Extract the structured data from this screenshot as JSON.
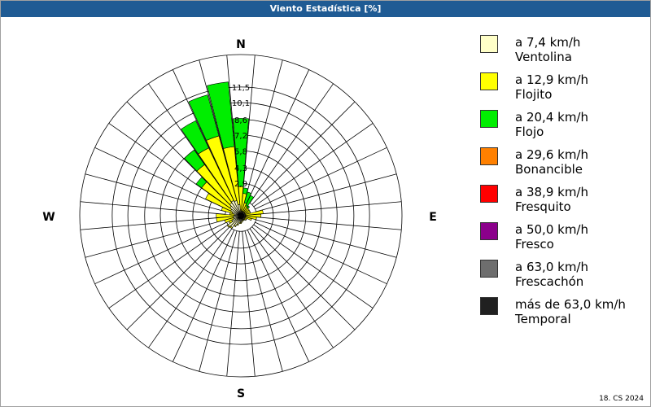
{
  "window": {
    "title": "Viento Estadística [%]"
  },
  "footer": {
    "text": "18. CS 2024"
  },
  "compass": {
    "north": "N",
    "east": "E",
    "south": "S",
    "west": "W"
  },
  "legend": [
    {
      "speed": "a 7,4 km/h",
      "name": "Ventolina",
      "color": "#ffffc8"
    },
    {
      "speed": "a 12,9 km/h",
      "name": "Flojito",
      "color": "#ffff00"
    },
    {
      "speed": "a 20,4 km/h",
      "name": "Flojo",
      "color": "#00ee00"
    },
    {
      "speed": "a 29,6 km/h",
      "name": "Bonancible",
      "color": "#ff8000"
    },
    {
      "speed": "a 38,9 km/h",
      "name": "Fresquito",
      "color": "#ff0000"
    },
    {
      "speed": "a 50,0 km/h",
      "name": "Fresco",
      "color": "#8b008b"
    },
    {
      "speed": "a 63,0 km/h",
      "name": "Frescachón",
      "color": "#6e6e6e"
    },
    {
      "speed": "más de 63,0 km/h",
      "name": "Temporal",
      "color": "#202020"
    }
  ],
  "chart_data": {
    "type": "polar-bar",
    "title": "Viento Estadística [%]",
    "unit": "%",
    "rmax": 14.4,
    "radial_ticks": [
      1.4,
      2.9,
      4.3,
      5.8,
      7.2,
      8.6,
      10.1,
      11.5
    ],
    "radial_tick_labels": [
      "",
      "2,9",
      "4,3",
      "5,8",
      "7,2",
      "8,6",
      "10,1",
      "11,5"
    ],
    "sectors": 36,
    "sector_width_deg": 10,
    "directions_deg": [
      0,
      10,
      20,
      30,
      40,
      50,
      60,
      70,
      80,
      90,
      100,
      110,
      120,
      130,
      140,
      150,
      160,
      170,
      180,
      190,
      200,
      210,
      220,
      230,
      240,
      250,
      260,
      270,
      280,
      290,
      300,
      310,
      320,
      330,
      340,
      350
    ],
    "series": [
      {
        "name": "Ventolina",
        "color": "#ffffc8",
        "values": [
          0.4,
          0.4,
          0.4,
          0.4,
          0.4,
          0.4,
          0.4,
          0.4,
          0.4,
          0.4,
          0.4,
          0.4,
          0.4,
          0.4,
          0.4,
          0.4,
          0.4,
          0.5,
          0.6,
          0.6,
          0.8,
          1.0,
          1.3,
          1.4,
          0.9,
          0.7,
          0.7,
          0.6,
          0.6,
          0.8,
          1.0,
          1.2,
          1.4,
          1.5,
          1.4,
          1.0
        ]
      },
      {
        "name": "Flojito",
        "color": "#ffff00",
        "values": [
          2.2,
          1.6,
          0.8,
          0.6,
          0.5,
          0.5,
          0.5,
          0.5,
          1.6,
          1.4,
          1.0,
          0.6,
          0.2,
          0.2,
          0.1,
          0.1,
          0.1,
          0.1,
          0.1,
          0.1,
          0.1,
          0.1,
          0.1,
          0.1,
          0.3,
          0.8,
          1.5,
          1.6,
          0.4,
          1.0,
          2.5,
          3.1,
          4.2,
          5.2,
          6.0,
          5.2
        ]
      },
      {
        "name": "Flojo",
        "color": "#00ee00",
        "values": [
          6.1,
          0.5,
          1.0,
          1.0,
          0.2,
          0.0,
          0.0,
          0.0,
          0.0,
          0.0,
          0.0,
          0.0,
          0.0,
          0.0,
          0.0,
          0.0,
          0.0,
          0.0,
          0.0,
          0.0,
          0.0,
          0.0,
          0.0,
          0.0,
          0.0,
          0.0,
          0.0,
          0.0,
          0.0,
          0.0,
          0.0,
          0.6,
          1.6,
          2.7,
          3.8,
          5.8
        ]
      },
      {
        "name": "Bonancible",
        "color": "#ff8000",
        "values": []
      },
      {
        "name": "Fresquito",
        "color": "#ff0000",
        "values": []
      },
      {
        "name": "Fresco",
        "color": "#8b008b",
        "values": []
      },
      {
        "name": "Frescachón",
        "color": "#6e6e6e",
        "values": []
      },
      {
        "name": "Temporal",
        "color": "#202020",
        "values": []
      }
    ]
  }
}
